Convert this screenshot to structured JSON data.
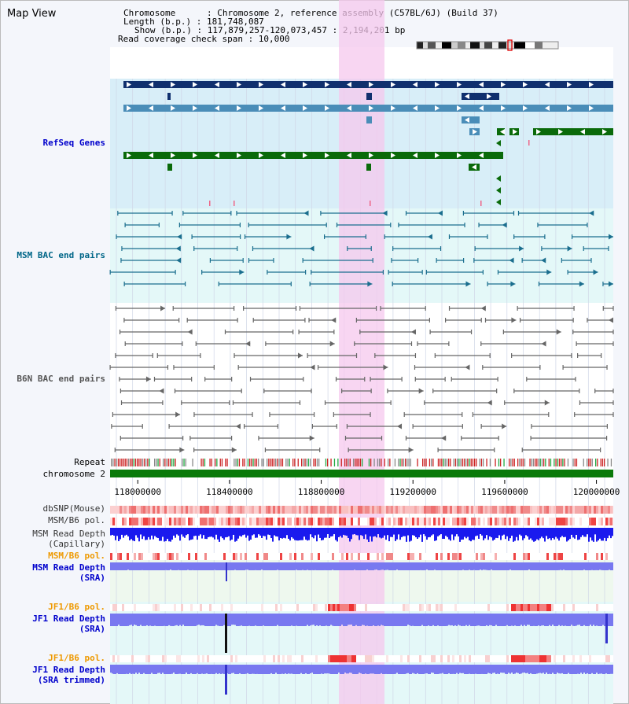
{
  "view_title": "Map View",
  "header": {
    "chromosome_line": "Chromosome      : Chromosome 2, reference assembly (C57BL/6J) (Build 37)",
    "length_line": "Length (b.p.) : 181,748,087",
    "show_line": "Show (b.p.) : 117,879,257-120,073,457 : 2,194,201 bp",
    "span_line": "Read coverage check span : 10,000"
  },
  "track_labels": {
    "refseq": "RefSeq Genes",
    "msm_bac": "MSM BAC end pairs",
    "b6n_bac": "B6N BAC end pairs",
    "repeat": "Repeat",
    "chromosome": "chromosome 2",
    "dbsnp": "dbSNP(Mouse)",
    "msm_b6_pol": "MSM/B6 pol.",
    "msm_depth_cap_1": "MSM Read Depth",
    "msm_depth_cap_2": "(Capillary)",
    "msm_b6_pol_2": "MSM/B6 pol.",
    "msm_depth_sra_1": "MSM Read Depth",
    "msm_depth_sra_2": "(SRA)",
    "jf1_b6_pol": "JF1/B6 pol.",
    "jf1_depth_sra_1": "JF1 Read Depth",
    "jf1_depth_sra_2": "(SRA)",
    "jf1_b6_pol_2": "JF1/B6 pol.",
    "jf1_depth_trim_1": "JF1 Read Depth",
    "jf1_depth_trim_2": "(SRA trimmed)"
  },
  "axis": {
    "ticks": [
      "118000000",
      "118400000",
      "118800000",
      "119200000",
      "119600000",
      "120000000"
    ],
    "range_bp": [
      117879257,
      120073457
    ]
  },
  "colors": {
    "refseq_dark": "#10306e",
    "refseq_mid": "#4a8db8",
    "refseq_green": "#0a6a0a",
    "refseq_bg": "#d8eef8",
    "msm_bac": "#1a6e8e",
    "msm_bg": "#e4f8f8",
    "b6n_bac": "#666666",
    "highlight": "#f6c8ee",
    "chromosome": "#0a7a0a",
    "depth_blue": "#1a1aee",
    "depth_light": "#7878f0"
  }
}
